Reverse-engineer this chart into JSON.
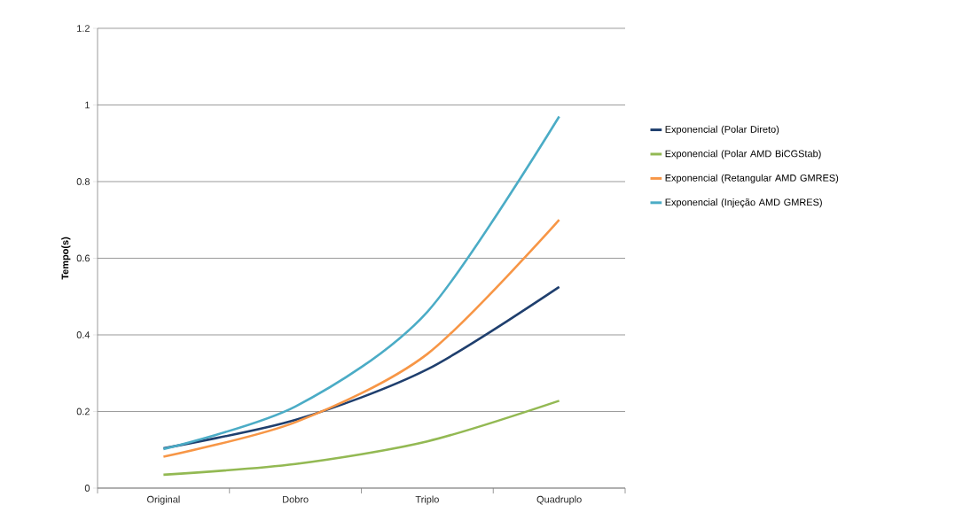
{
  "chart_data": {
    "type": "line",
    "ylabel": "Tempo(s)",
    "categories": [
      "Original",
      "Dobro",
      "Triplo",
      "Quadruplo"
    ],
    "series": [
      {
        "name": "Exponencial (Polar Direto)",
        "color": "#1f3f6e",
        "values": [
          0.104,
          0.178,
          0.31,
          0.525
        ]
      },
      {
        "name": "Exponencial (Polar AMD BiCGStab)",
        "color": "#93b953",
        "values": [
          0.035,
          0.063,
          0.122,
          0.228
        ]
      },
      {
        "name": "Exponencial (Retangular AMD GMRES)",
        "color": "#f79646",
        "values": [
          0.082,
          0.172,
          0.35,
          0.7
        ]
      },
      {
        "name": "Exponencial (Injeção AMD GMRES)",
        "color": "#4bacc6",
        "values": [
          0.102,
          0.213,
          0.46,
          0.97
        ]
      }
    ],
    "ylim": [
      0,
      1.2
    ],
    "yticks": [
      0,
      0.2,
      0.4,
      0.6,
      0.8,
      1,
      1.2
    ],
    "grid": "y",
    "legend": "right",
    "marker": "none",
    "line_style": "solid"
  }
}
